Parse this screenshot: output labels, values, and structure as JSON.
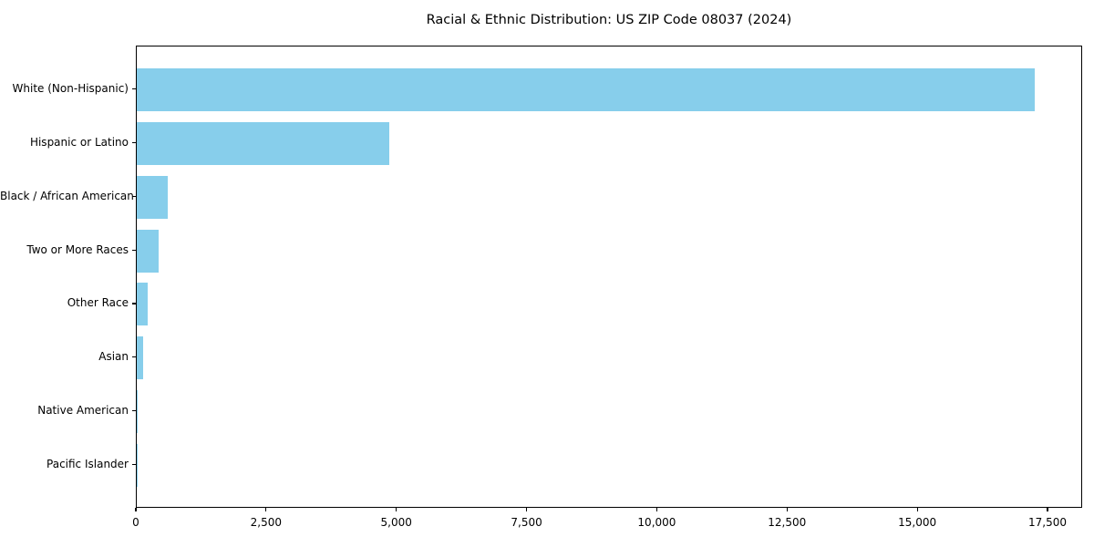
{
  "chart_data": {
    "type": "bar",
    "orientation": "horizontal",
    "title": "Racial & Ethnic Distribution: US ZIP Code 08037 (2024)",
    "categories": [
      "White (Non-Hispanic)",
      "Hispanic or Latino",
      "Black / African American",
      "Two or More Races",
      "Other Race",
      "Asian",
      "Native American",
      "Pacific Islander"
    ],
    "values": [
      17270,
      4850,
      600,
      425,
      205,
      120,
      15,
      3
    ],
    "bar_color": "#87CEEB",
    "xlim": [
      0,
      18165
    ],
    "xticks": [
      0,
      2500,
      5000,
      7500,
      10000,
      12500,
      15000,
      17500
    ],
    "xtick_labels": [
      "0",
      "2,500",
      "5,000",
      "7,500",
      "10,000",
      "12,500",
      "15,000",
      "17,500"
    ],
    "xlabel": "",
    "ylabel": "",
    "grid": false,
    "legend": false,
    "background_color": "#ffffff",
    "text_color": "#000000"
  }
}
